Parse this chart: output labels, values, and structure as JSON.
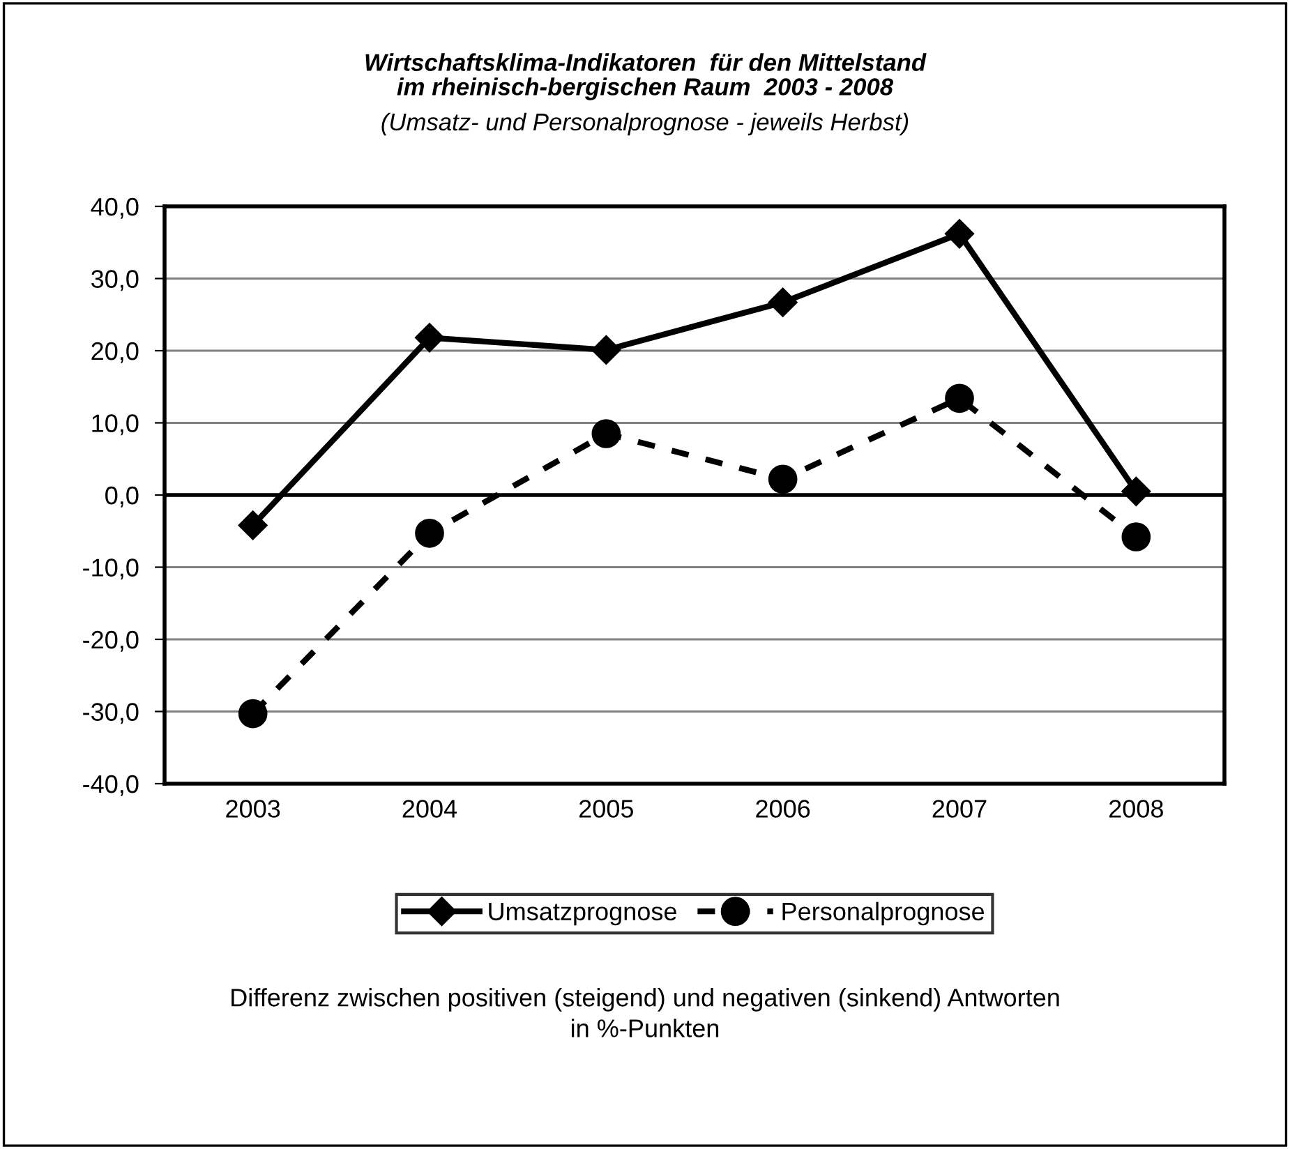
{
  "chart_data": {
    "type": "line",
    "title": "Wirtschaftsklima-Indikatoren  für den Mittelstand\nim rheinisch-bergischen Raum  2003 - 2008",
    "subtitle": "(Umsatz- und Personalprognose - jeweils Herbst)",
    "categories": [
      "2003",
      "2004",
      "2005",
      "2006",
      "2007",
      "2008"
    ],
    "series": [
      {
        "name": "Umsatzprognose",
        "color": "#000000",
        "marker": "diamond",
        "line_style": "solid",
        "values": [
          -4.2,
          21.8,
          20.1,
          26.7,
          36.2,
          0.5
        ]
      },
      {
        "name": "Personalprognose",
        "color": "#000000",
        "marker": "circle",
        "line_style": "dashed",
        "values": [
          -30.3,
          -5.3,
          8.5,
          2.2,
          13.4,
          -5.8
        ]
      }
    ],
    "ylim": [
      -40,
      40
    ],
    "yticks": [
      {
        "value": -40,
        "label": "-40,0"
      },
      {
        "value": -30,
        "label": "-30,0"
      },
      {
        "value": -20,
        "label": "-20,0"
      },
      {
        "value": -10,
        "label": "-10,0"
      },
      {
        "value": 0,
        "label": "0,0"
      },
      {
        "value": 10,
        "label": "10,0"
      },
      {
        "value": 20,
        "label": "20,0"
      },
      {
        "value": 30,
        "label": "30,0"
      },
      {
        "value": 40,
        "label": "40,0"
      }
    ],
    "grid": "y",
    "ref_lines": [
      {
        "axis": "y",
        "value": 0,
        "color": "#000000"
      }
    ],
    "legend": "bottom",
    "annotations": [
      "Differenz zwischen positiven (steigend) und negativen (sinkend) Antworten\nin %-Punkten"
    ]
  }
}
